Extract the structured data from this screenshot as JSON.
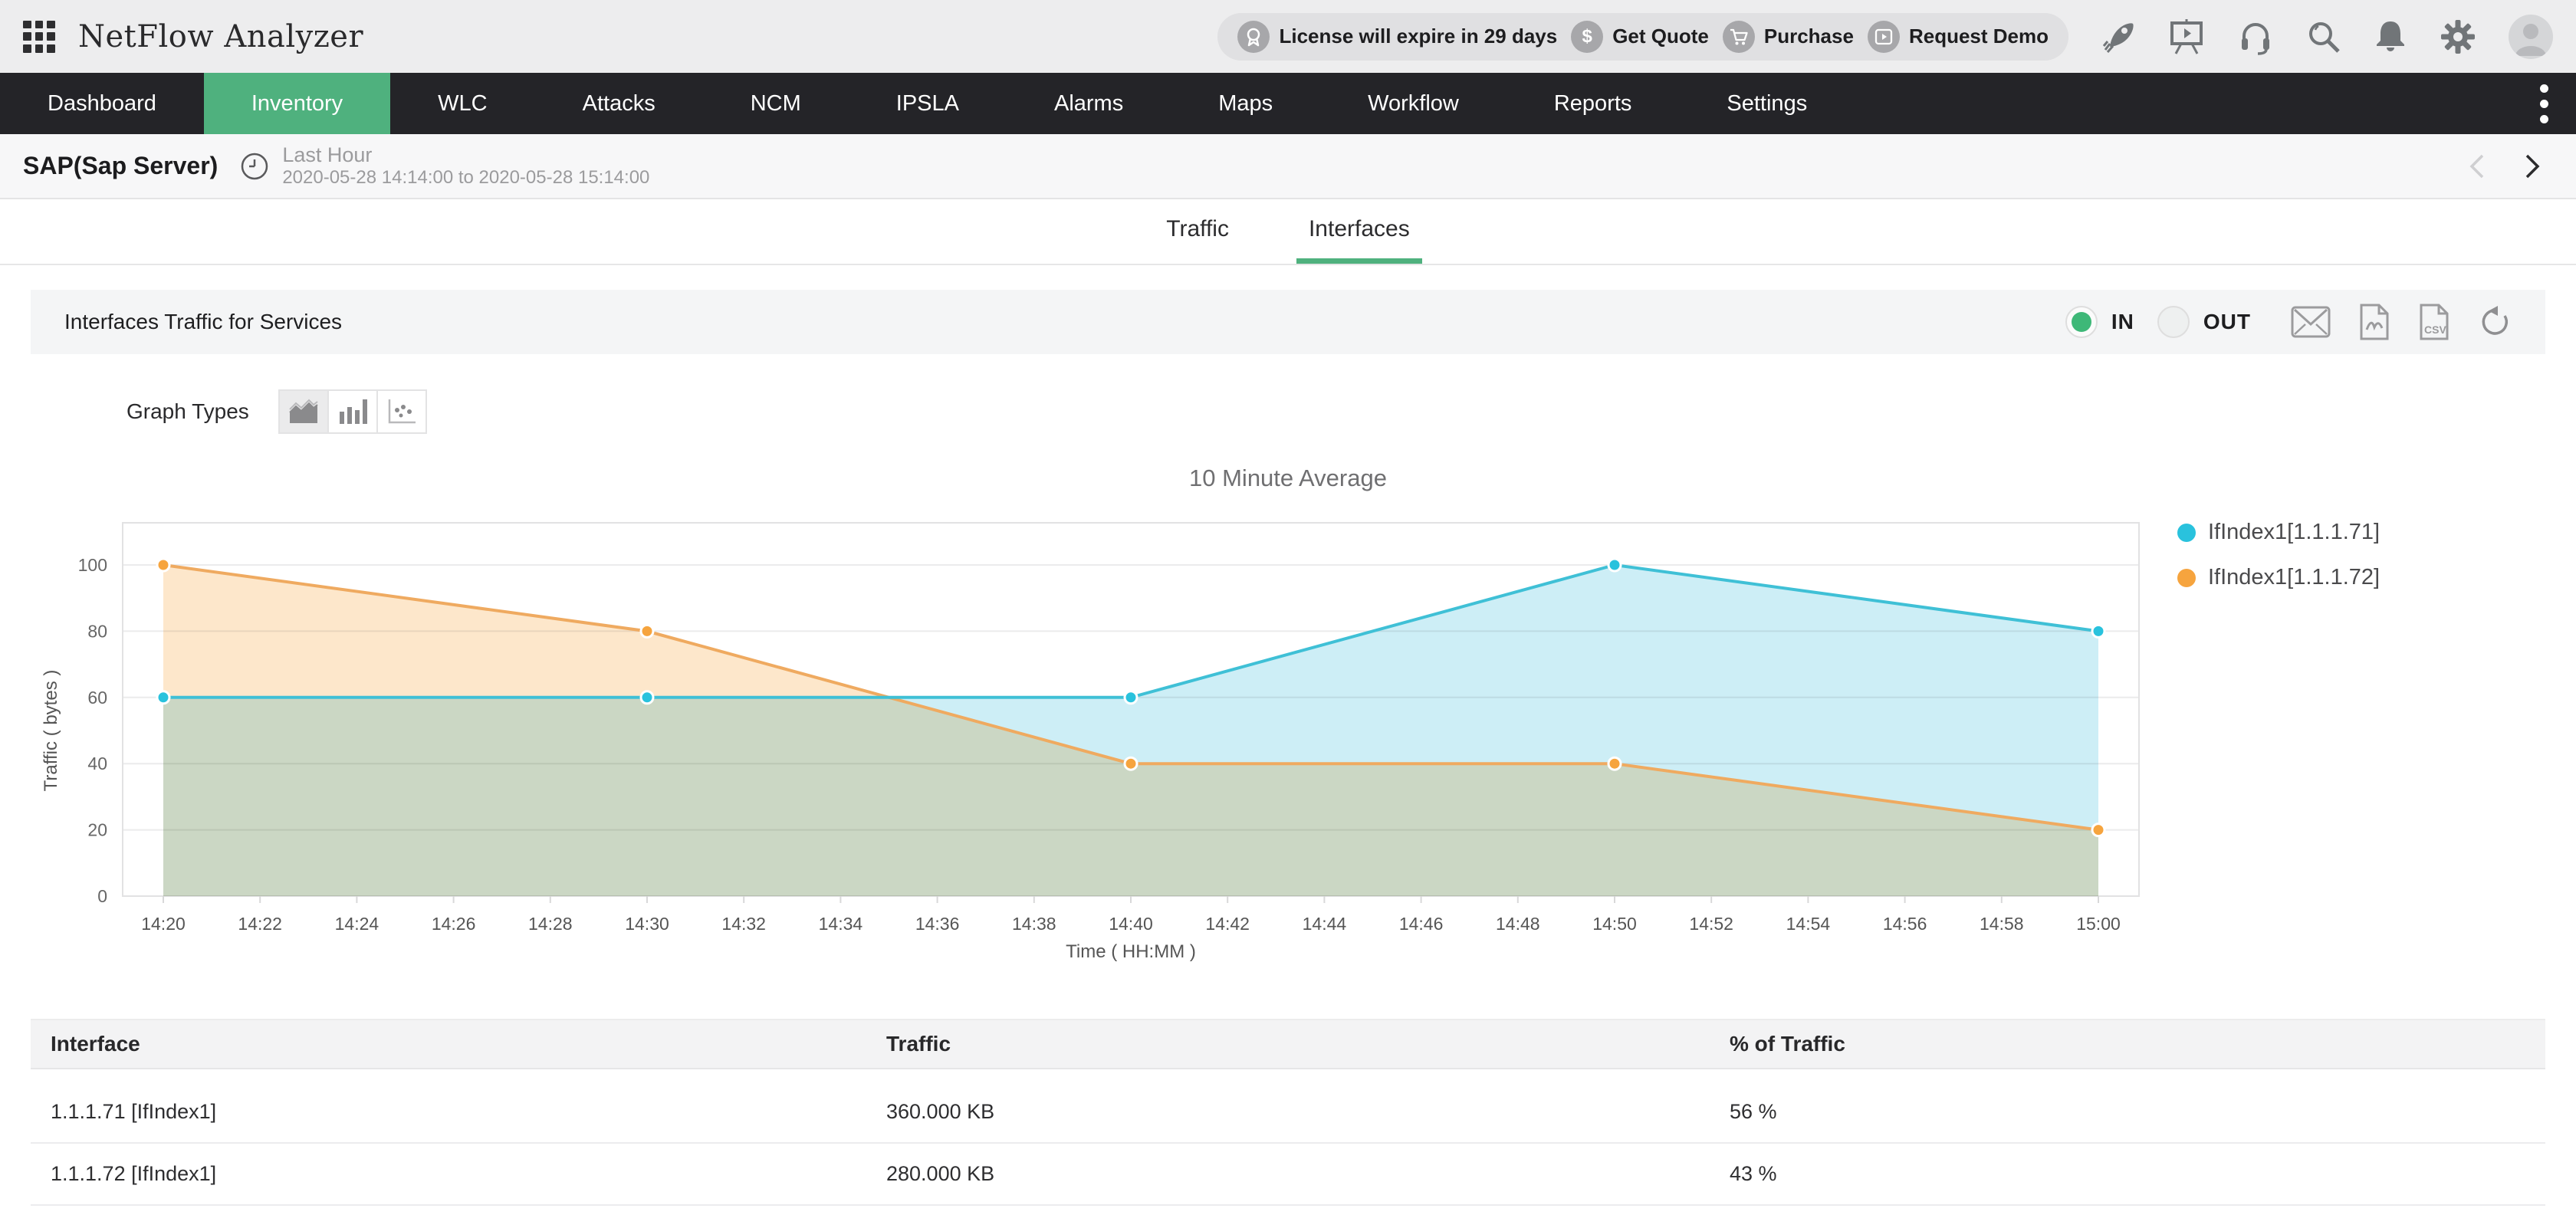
{
  "topbar": {
    "app_title": "NetFlow Analyzer",
    "license_text": "License will expire in 29 days",
    "get_quote_label": "Get Quote",
    "purchase_label": "Purchase",
    "request_demo_label": "Request Demo"
  },
  "nav": {
    "items": [
      {
        "label": "Dashboard",
        "active": false
      },
      {
        "label": "Inventory",
        "active": true
      },
      {
        "label": "WLC",
        "active": false
      },
      {
        "label": "Attacks",
        "active": false
      },
      {
        "label": "NCM",
        "active": false
      },
      {
        "label": "IPSLA",
        "active": false
      },
      {
        "label": "Alarms",
        "active": false
      },
      {
        "label": "Maps",
        "active": false
      },
      {
        "label": "Workflow",
        "active": false
      },
      {
        "label": "Reports",
        "active": false
      },
      {
        "label": "Settings",
        "active": false
      }
    ],
    "active_color": "#4fb17e"
  },
  "breadcrumb": {
    "title": "SAP(Sap Server)",
    "period_label": "Last Hour",
    "period_range": "2020-05-28 14:14:00 to 2020-05-28 15:14:00"
  },
  "tabs": [
    {
      "label": "Traffic",
      "active": false
    },
    {
      "label": "Interfaces",
      "active": true
    }
  ],
  "section": {
    "title": "Interfaces Traffic for Services",
    "direction_options": [
      {
        "label": "IN",
        "selected": true
      },
      {
        "label": "OUT",
        "selected": false
      }
    ]
  },
  "graph_types": {
    "label": "Graph Types",
    "options": [
      "area-chart",
      "bar-chart",
      "scatter-chart"
    ],
    "selected": "area-chart"
  },
  "chart_data": {
    "type": "area",
    "title": "10 Minute Average",
    "xlabel": "Time ( HH:MM )",
    "ylabel": "Traffic ( bytes )",
    "ylim": [
      0,
      100
    ],
    "yticks": [
      0,
      20,
      40,
      60,
      80,
      100
    ],
    "x_ticklabels": [
      "14:20",
      "14:22",
      "14:24",
      "14:26",
      "14:28",
      "14:30",
      "14:32",
      "14:34",
      "14:36",
      "14:38",
      "14:40",
      "14:42",
      "14:44",
      "14:46",
      "14:48",
      "14:50",
      "14:52",
      "14:54",
      "14:56",
      "14:58",
      "15:00"
    ],
    "grid": true,
    "legend_position": "right",
    "series": [
      {
        "name": "IfIndex1[1.1.1.71]",
        "color": "#29c2dd",
        "line": "#3fc0d6",
        "fill": "#cdeef6",
        "x": [
          "14:20",
          "14:30",
          "14:40",
          "14:50",
          "15:00"
        ],
        "values": [
          60,
          60,
          60,
          100,
          80
        ]
      },
      {
        "name": "IfIndex1[1.1.1.72]",
        "color": "#f6a43e",
        "line": "#efaa60",
        "fill": "#fde7cb",
        "x": [
          "14:20",
          "14:30",
          "14:40",
          "14:50",
          "15:00"
        ],
        "values": [
          100,
          80,
          40,
          40,
          20
        ]
      }
    ]
  },
  "table": {
    "columns": [
      "Interface",
      "Traffic",
      "% of Traffic"
    ],
    "rows": [
      [
        "1.1.1.71 [IfIndex1]",
        "360.000 KB",
        "56 %"
      ],
      [
        "1.1.1.72 [IfIndex1]",
        "280.000 KB",
        "43 %"
      ]
    ]
  }
}
